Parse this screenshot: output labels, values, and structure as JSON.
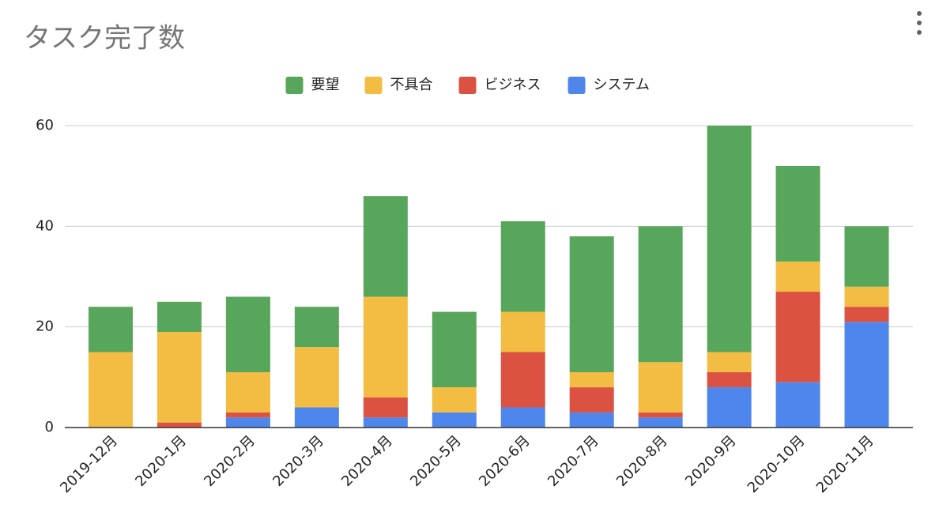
{
  "chart_data": {
    "type": "stacked-bar",
    "title": "タスク完了数",
    "categories": [
      "2019-12月",
      "2020-1月",
      "2020-2月",
      "2020-3月",
      "2020-4月",
      "2020-5月",
      "2020-6月",
      "2020-7月",
      "2020-8月",
      "2020-9月",
      "2020-10月",
      "2020-11月"
    ],
    "series": [
      {
        "name": "システム",
        "color": "#4e86ec",
        "values": [
          0,
          0,
          2,
          4,
          2,
          3,
          4,
          3,
          2,
          8,
          9,
          21
        ]
      },
      {
        "name": "ビジネス",
        "color": "#dc5242",
        "values": [
          0,
          1,
          1,
          0,
          4,
          0,
          11,
          5,
          1,
          3,
          18,
          3
        ]
      },
      {
        "name": "不具合",
        "color": "#f3bc42",
        "values": [
          15,
          18,
          8,
          12,
          20,
          5,
          8,
          3,
          10,
          4,
          6,
          4
        ]
      },
      {
        "name": "要望",
        "color": "#58a65c",
        "values": [
          9,
          6,
          15,
          8,
          20,
          15,
          18,
          27,
          27,
          45,
          19,
          12
        ]
      }
    ],
    "ylim": [
      0,
      60
    ],
    "yticks": [
      0,
      20,
      40,
      60
    ],
    "grid": true
  }
}
